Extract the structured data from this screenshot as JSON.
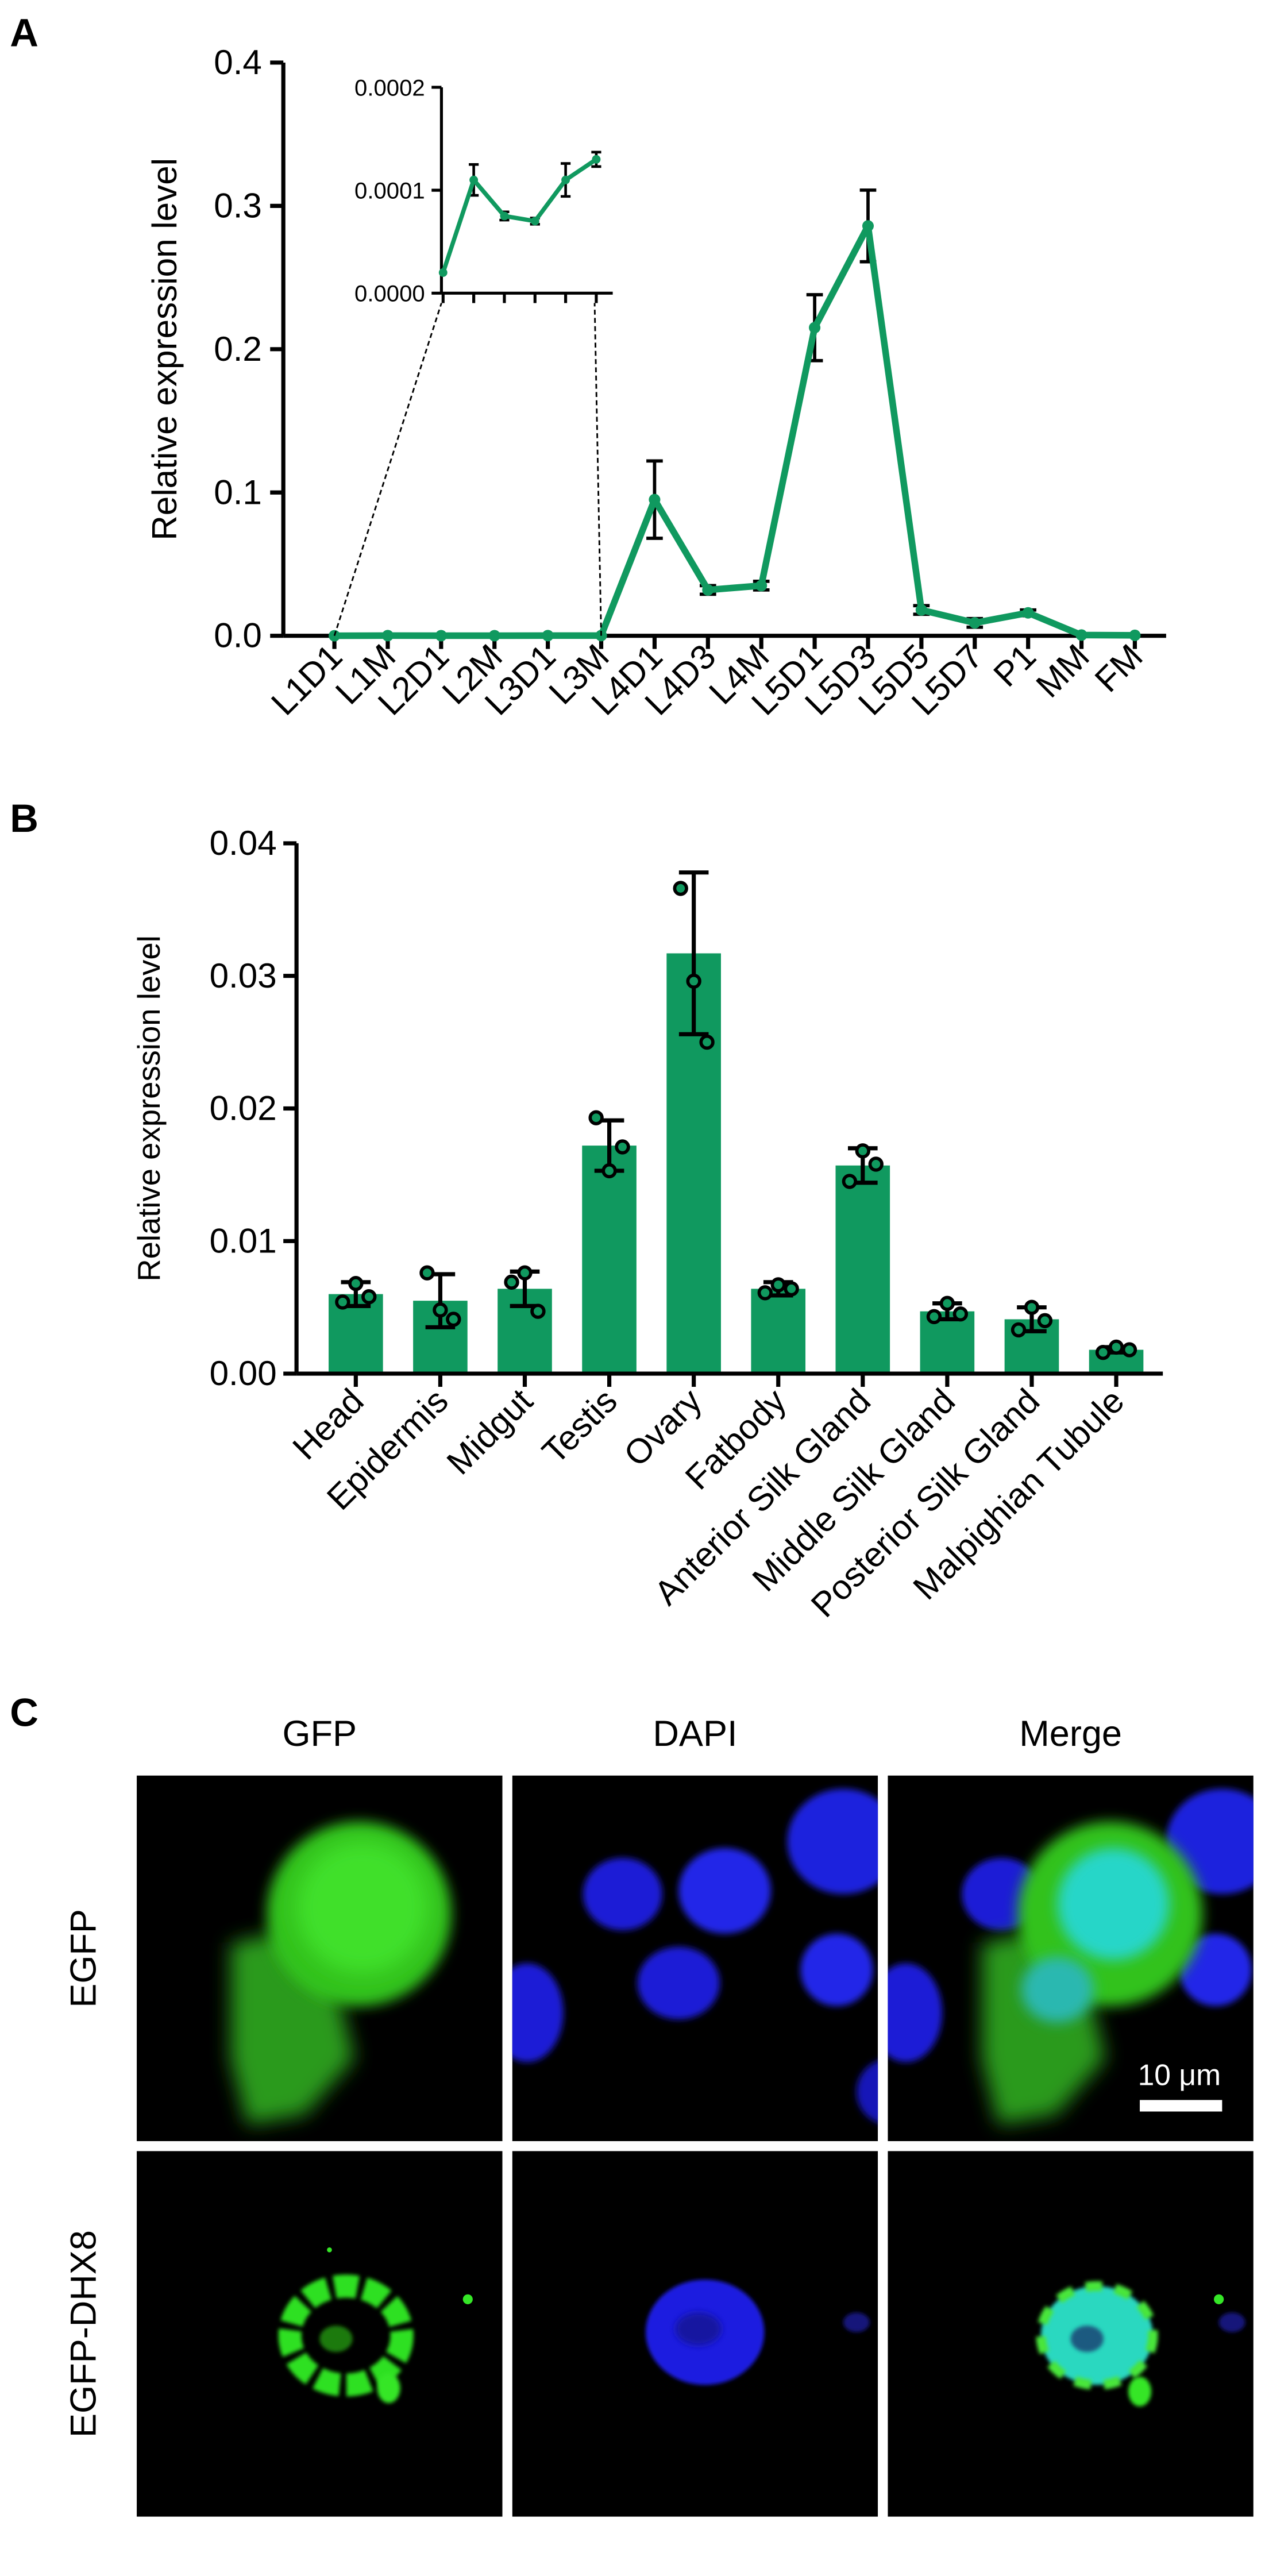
{
  "panels": {
    "a": "A",
    "b": "B",
    "c": "C"
  },
  "chart_data": [
    {
      "panel": "A",
      "type": "line",
      "ylabel": "Relative expression level",
      "ylim": [
        0,
        0.4
      ],
      "yticks": [
        "0.0",
        "0.1",
        "0.2",
        "0.3",
        "0.4"
      ],
      "categories": [
        "L1D1",
        "L1M",
        "L2D1",
        "L2M",
        "L3D1",
        "L3M",
        "L4D1",
        "L4D3",
        "L4M",
        "L5D1",
        "L5D3",
        "L5D5",
        "L5D7",
        "P1",
        "MM",
        "FM"
      ],
      "values": [
        2e-05,
        0.00011,
        7.5e-05,
        7e-05,
        0.00011,
        0.00013,
        0.095,
        0.032,
        0.035,
        0.215,
        0.286,
        0.018,
        0.009,
        0.016,
        0.0005,
        0.0003
      ],
      "errors": [
        0,
        1.5e-05,
        4e-06,
        3e-06,
        1.6e-05,
        7e-06,
        0.027,
        0.003,
        0.003,
        0.023,
        0.025,
        0.003,
        0.003,
        0.002,
        0,
        0
      ],
      "color": "#10995f",
      "grid": false,
      "inset": {
        "categories": [
          "L1D1",
          "L1M",
          "L2D1",
          "L2M",
          "L3D1",
          "L3M"
        ],
        "ylim": [
          0,
          0.0002
        ],
        "yticks": [
          "0.0000",
          "0.0001",
          "0.0002"
        ]
      }
    },
    {
      "panel": "B",
      "type": "bar",
      "ylabel": "Relative expression level",
      "ylim": [
        0,
        0.04
      ],
      "yticks": [
        "0.00",
        "0.01",
        "0.02",
        "0.03",
        "0.04"
      ],
      "categories": [
        "Head",
        "Epidermis",
        "Midgut",
        "Testis",
        "Ovary",
        "Fatbody",
        "Anterior Silk Gland",
        "Middle Silk Gland",
        "Posterior Silk Gland",
        "Malpighian Tubule"
      ],
      "values": [
        0.006,
        0.0055,
        0.0064,
        0.0172,
        0.0317,
        0.0064,
        0.0157,
        0.0047,
        0.0041,
        0.0018
      ],
      "errors": [
        0.0009,
        0.002,
        0.0013,
        0.0019,
        0.0061,
        0.0005,
        0.0013,
        0.0006,
        0.0009,
        0.0002
      ],
      "points": [
        [
          0.0054,
          0.0068,
          0.0058
        ],
        [
          0.0076,
          0.0048,
          0.0041
        ],
        [
          0.0069,
          0.0076,
          0.0047
        ],
        [
          0.0193,
          0.0153,
          0.0171
        ],
        [
          0.0366,
          0.0296,
          0.025
        ],
        [
          0.0061,
          0.0067,
          0.0064
        ],
        [
          0.0145,
          0.0168,
          0.0158
        ],
        [
          0.0043,
          0.0053,
          0.0045
        ],
        [
          0.0033,
          0.005,
          0.004
        ],
        [
          0.0016,
          0.002,
          0.0018
        ]
      ],
      "color": "#10995f",
      "grid": false
    }
  ],
  "microscopy": {
    "columns": [
      "GFP",
      "DAPI",
      "Merge"
    ],
    "rows": [
      "EGFP",
      "EGFP-DHX8"
    ],
    "scale_bar": "10 μm"
  }
}
